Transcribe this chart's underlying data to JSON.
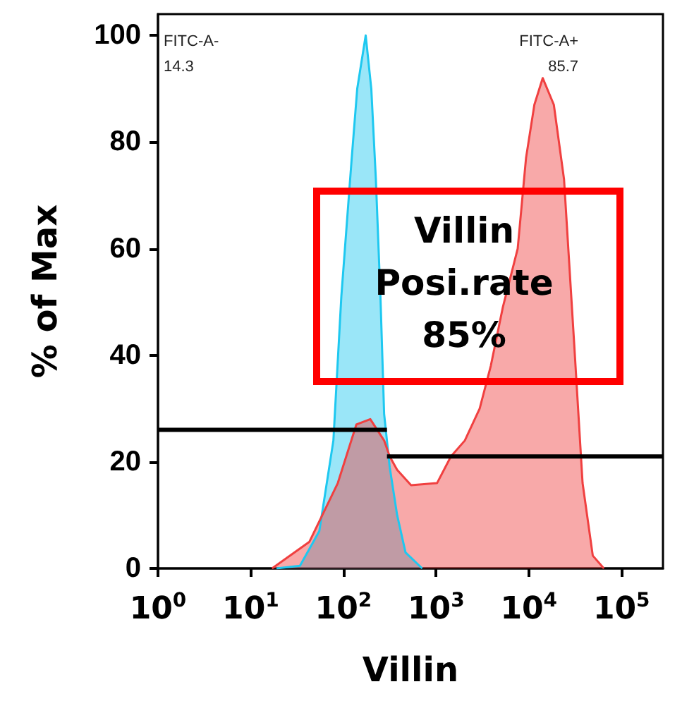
{
  "chart_data": {
    "type": "area",
    "xlabel": "Villin",
    "ylabel": "% of Max",
    "log": "x",
    "grid": false,
    "marker": "none",
    "xlim": [
      1,
      280000
    ],
    "ylim": [
      0,
      104
    ],
    "xticks": [
      {
        "value": 1,
        "label": "10$^{0}$"
      },
      {
        "value": 10,
        "label": "10$^{1}$"
      },
      {
        "value": 100,
        "label": "10$^{2}$"
      },
      {
        "value": 1000,
        "label": "10$^{3}$"
      },
      {
        "value": 10000,
        "label": "10$^{4}$"
      },
      {
        "value": 100000,
        "label": "10$^{5}$"
      }
    ],
    "yticks": [
      0,
      20,
      40,
      60,
      80,
      100
    ],
    "series": [
      {
        "color": "#1ec8f0",
        "x": [
          19,
          34,
          55,
          78,
          95,
          123,
          141,
          174,
          200,
          224,
          251,
          275,
          316,
          380,
          468,
          708
        ],
        "values": [
          0,
          0.5,
          7,
          24,
          51,
          77,
          90,
          100,
          90,
          73,
          51,
          29,
          19,
          10,
          3,
          0
        ]
      },
      {
        "color": "#f04040",
        "x": [
          17,
          43,
          87,
          138,
          195,
          275,
          316,
          380,
          537,
          1023,
          1445,
          2042,
          2951,
          3890,
          5248,
          7586,
          9333,
          11482,
          14125,
          18621,
          23988,
          30903,
          38019,
          48978,
          64565
        ],
        "values": [
          0,
          5,
          16,
          27,
          28,
          24,
          21,
          18.5,
          15.6,
          16,
          21,
          24,
          30,
          38,
          49,
          60,
          77,
          87,
          92,
          87,
          73,
          42,
          16,
          2.4,
          0
        ]
      },
      {
        "type": "line",
        "color": "#000000",
        "x": [
          1,
          295
        ],
        "values": [
          26,
          26
        ]
      },
      {
        "type": "line",
        "color": "#000000",
        "x": [
          295,
          275000
        ],
        "values": [
          21,
          21
        ]
      }
    ],
    "annotations": [
      "FITC-A-",
      "14.3",
      "FITC-A+",
      "85.7",
      "Villin\nPosi.rate\n85%"
    ]
  }
}
